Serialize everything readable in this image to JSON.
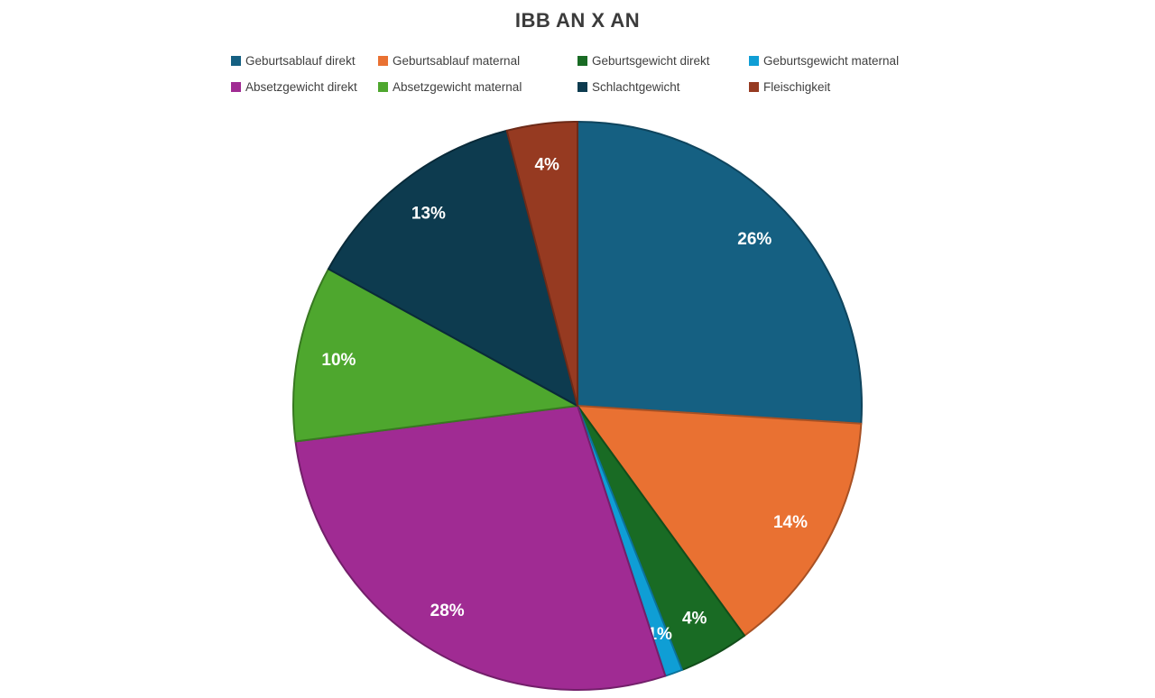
{
  "title": "IBB AN X AN",
  "chart_data": {
    "type": "pie",
    "title": "IBB AN X AN",
    "legend_position": "top",
    "start_angle_deg": 0,
    "direction": "clockwise",
    "label_color": "#FFFFFF",
    "slices": [
      {
        "label": "Geburtsablauf direkt",
        "value": 26,
        "percent_label": "26%",
        "color": "#156082"
      },
      {
        "label": "Geburtsablauf maternal",
        "value": 14,
        "percent_label": "14%",
        "color": "#E97132"
      },
      {
        "label": "Geburtsgewicht direkt",
        "value": 4,
        "percent_label": "4%",
        "color": "#196B24"
      },
      {
        "label": "Geburtsgewicht maternal",
        "value": 1,
        "percent_label": "1%",
        "color": "#0F9ED5"
      },
      {
        "label": "Absetzgewicht direkt",
        "value": 28,
        "percent_label": "28%",
        "color": "#A02B93"
      },
      {
        "label": "Absetzgewicht maternal",
        "value": 10,
        "percent_label": "10%",
        "color": "#4EA72E"
      },
      {
        "label": "Schlachtgewicht",
        "value": 13,
        "percent_label": "13%",
        "color": "#0D3B4F"
      },
      {
        "label": "Fleischigkeit",
        "value": 4,
        "percent_label": "4%",
        "color": "#963A21"
      }
    ]
  }
}
